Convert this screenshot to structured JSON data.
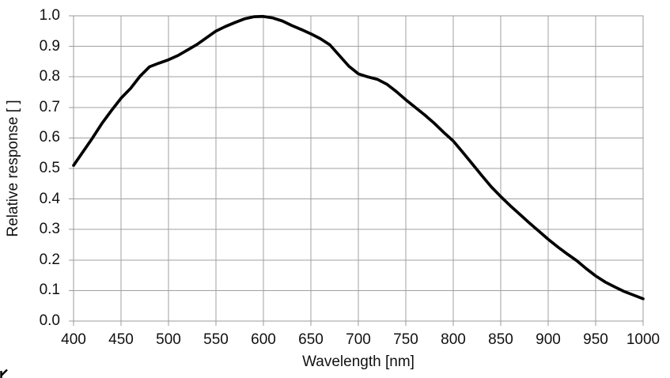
{
  "chart_data": {
    "type": "line",
    "title": "",
    "xlabel": "Wavelength [nm]",
    "ylabel": "Relative response [ ]",
    "xlim": [
      400,
      1000
    ],
    "ylim": [
      0.0,
      1.0
    ],
    "grid": true,
    "legend": "none",
    "x_tick_labels": [
      "400",
      "450",
      "500",
      "550",
      "600",
      "650",
      "700",
      "750",
      "800",
      "850",
      "900",
      "950",
      "1000"
    ],
    "y_tick_labels": [
      "0.0",
      "0.1",
      "0.2",
      "0.3",
      "0.4",
      "0.5",
      "0.6",
      "0.7",
      "0.8",
      "0.9",
      "1.0"
    ],
    "series": [
      {
        "name": "relative-response",
        "color": "#000000",
        "x": [
          400,
          410,
          420,
          430,
          440,
          450,
          460,
          470,
          480,
          490,
          500,
          510,
          520,
          530,
          540,
          550,
          560,
          570,
          580,
          590,
          600,
          610,
          620,
          630,
          640,
          650,
          660,
          670,
          680,
          690,
          700,
          710,
          720,
          730,
          740,
          750,
          760,
          770,
          780,
          790,
          800,
          810,
          820,
          830,
          840,
          850,
          860,
          870,
          880,
          890,
          900,
          910,
          920,
          930,
          940,
          950,
          960,
          970,
          980,
          990,
          1000
        ],
        "y": [
          0.51,
          0.555,
          0.6,
          0.648,
          0.69,
          0.73,
          0.762,
          0.802,
          0.833,
          0.845,
          0.856,
          0.87,
          0.888,
          0.906,
          0.928,
          0.95,
          0.965,
          0.978,
          0.99,
          0.997,
          0.998,
          0.993,
          0.983,
          0.968,
          0.955,
          0.941,
          0.925,
          0.905,
          0.87,
          0.835,
          0.81,
          0.8,
          0.792,
          0.776,
          0.752,
          0.725,
          0.7,
          0.675,
          0.648,
          0.618,
          0.59,
          0.553,
          0.515,
          0.477,
          0.44,
          0.408,
          0.378,
          0.35,
          0.322,
          0.295,
          0.268,
          0.243,
          0.22,
          0.198,
          0.172,
          0.148,
          0.128,
          0.112,
          0.097,
          0.085,
          0.073
        ]
      }
    ]
  },
  "colors": {
    "background": "#ffffff",
    "grid": "#a0a0a0",
    "axis_frame": "#9b9b9b",
    "tick_mark": "#9b9b9b",
    "text": "#111111",
    "curve": "#000000"
  }
}
